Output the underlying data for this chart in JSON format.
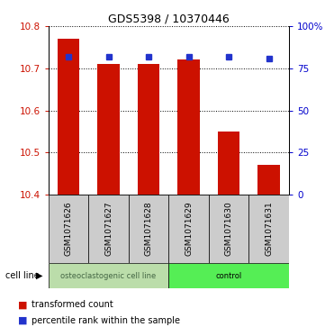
{
  "title": "GDS5398 / 10370446",
  "samples": [
    "GSM1071626",
    "GSM1071627",
    "GSM1071628",
    "GSM1071629",
    "GSM1071630",
    "GSM1071631"
  ],
  "bar_values": [
    10.77,
    10.71,
    10.71,
    10.72,
    10.55,
    10.47
  ],
  "percentile_values": [
    82,
    82,
    82,
    82,
    82,
    81
  ],
  "ylim_left": [
    10.4,
    10.8
  ],
  "ylim_right": [
    0,
    100
  ],
  "yticks_left": [
    10.4,
    10.5,
    10.6,
    10.7,
    10.8
  ],
  "yticks_right": [
    0,
    25,
    50,
    75,
    100
  ],
  "bar_color": "#cc1100",
  "dot_color": "#2233cc",
  "bar_width": 0.55,
  "groups": [
    {
      "label": "osteoclastogenic cell line",
      "span": [
        0,
        3
      ],
      "facecolor": "#bbddaa",
      "text_color": "#446644"
    },
    {
      "label": "control",
      "span": [
        3,
        6
      ],
      "facecolor": "#55ee55",
      "text_color": "#000000"
    }
  ],
  "cell_line_label": "cell line",
  "legend_bar_label": "transformed count",
  "legend_dot_label": "percentile rank within the sample",
  "sample_box_color": "#cccccc",
  "title_fontsize": 9,
  "tick_fontsize": 7.5,
  "label_fontsize": 6.5,
  "legend_fontsize": 7
}
